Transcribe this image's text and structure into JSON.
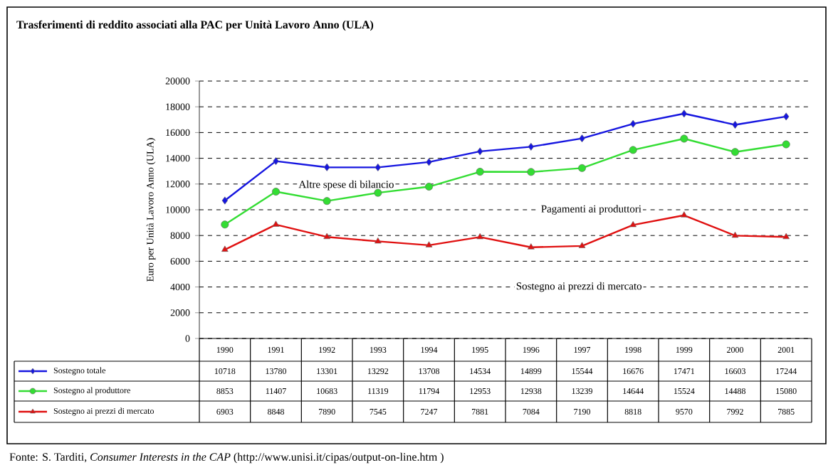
{
  "chart_data": {
    "type": "line",
    "title": "Trasferimenti di reddito associati alla PAC per Unità Lavoro Anno (ULA)",
    "ylabel": "Euro per Unità Lavoro Anno (ULA)",
    "categories": [
      "1990",
      "1991",
      "1992",
      "1993",
      "1994",
      "1995",
      "1996",
      "1997",
      "1998",
      "1999",
      "2000",
      "2001"
    ],
    "series": [
      {
        "name": "Sostegno totale",
        "color": "#1515e0",
        "marker": "diamond",
        "values": [
          10718,
          13780,
          13301,
          13292,
          13708,
          14534,
          14899,
          15544,
          16676,
          17471,
          16603,
          17244
        ]
      },
      {
        "name": "Sostegno al produttore",
        "color": "#33dd33",
        "marker": "circle",
        "values": [
          8853,
          11407,
          10683,
          11319,
          11794,
          12953,
          12938,
          13239,
          14644,
          15524,
          14488,
          15080
        ]
      },
      {
        "name": "Sostegno ai prezzi di mercato",
        "color": "#e01010",
        "marker": "triangle",
        "values": [
          6903,
          8848,
          7890,
          7545,
          7247,
          7881,
          7084,
          7190,
          8818,
          9570,
          7992,
          7885
        ]
      }
    ],
    "ylim": [
      0,
      20000
    ],
    "yticks": [
      0,
      2000,
      4000,
      6000,
      8000,
      10000,
      12000,
      14000,
      16000,
      18000,
      20000
    ],
    "grid": "y",
    "data_labels": true,
    "legend": "bottom",
    "annotations": [
      "Altre spese di bilancio",
      "Pagamenti ai produttori",
      "Sostegno ai prezzi di mercato",
      "Fonte: S. Tarditi, *Consumer Interests in the CAP* (http://www.unisi.it/cipas/output-on-line.htm )"
    ]
  }
}
